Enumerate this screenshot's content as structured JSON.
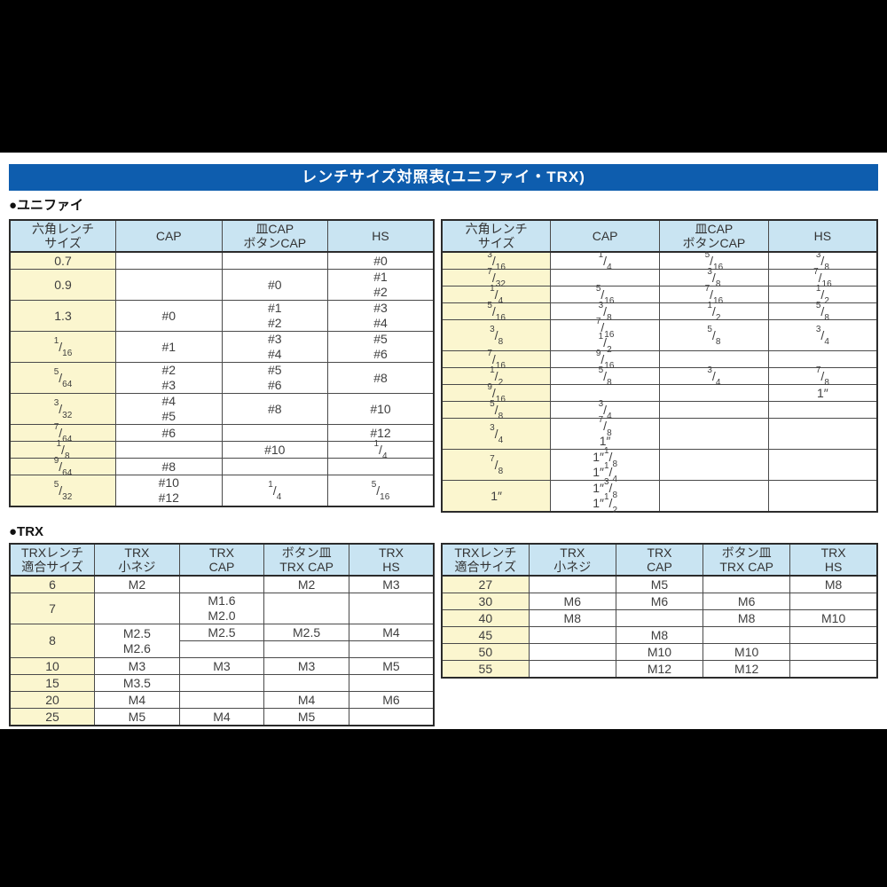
{
  "title_bar": {
    "text": "レンチサイズ対照表(ユニファイ・TRX)"
  },
  "sections": {
    "unify_label": "●ユニファイ",
    "trx_label": "●TRX"
  },
  "colors": {
    "title_bar_bg": "#0e5dae",
    "table_header_bg": "#c9e4f2",
    "size_column_bg": "#fbf6cf",
    "black_band": "#000000",
    "cell_text": "#3f3f3f"
  },
  "tables": {
    "unify_left": {
      "headers": [
        [
          "六角レンチ",
          "サイズ"
        ],
        [
          "CAP"
        ],
        [
          "皿CAP",
          "ボタンCAP"
        ],
        [
          "HS"
        ]
      ],
      "rows": [
        {
          "cells": [
            {
              "t": [
                "0.7"
              ]
            },
            {
              "t": []
            },
            {
              "t": []
            },
            {
              "t": [
                "#0"
              ]
            }
          ]
        },
        {
          "cells": [
            {
              "t": [
                "0.9"
              ]
            },
            {
              "t": []
            },
            {
              "t": [
                "#0"
              ]
            },
            {
              "t": [
                "#1",
                "#2"
              ]
            }
          ]
        },
        {
          "cells": [
            {
              "t": [
                "1.3"
              ]
            },
            {
              "t": [
                "#0"
              ]
            },
            {
              "t": [
                "#1",
                "#2"
              ]
            },
            {
              "t": [
                "#3",
                "#4"
              ]
            }
          ]
        },
        {
          "cells": [
            {
              "t": [
                "1/16"
              ]
            },
            {
              "t": [
                "#1"
              ]
            },
            {
              "t": [
                "#3",
                "#4"
              ]
            },
            {
              "t": [
                "#5",
                "#6"
              ]
            }
          ]
        },
        {
          "cells": [
            {
              "t": [
                "5/64"
              ]
            },
            {
              "t": [
                "#2",
                "#3"
              ]
            },
            {
              "t": [
                "#5",
                "#6"
              ]
            },
            {
              "t": [
                "#8"
              ]
            }
          ]
        },
        {
          "cells": [
            {
              "t": [
                "3/32"
              ]
            },
            {
              "t": [
                "#4",
                "#5"
              ]
            },
            {
              "t": [
                "#8"
              ]
            },
            {
              "t": [
                "#10"
              ]
            }
          ]
        },
        {
          "cells": [
            {
              "t": [
                "7/64"
              ]
            },
            {
              "t": [
                "#6"
              ]
            },
            {
              "t": []
            },
            {
              "t": [
                "#12"
              ]
            }
          ]
        },
        {
          "cells": [
            {
              "t": [
                "1/8"
              ]
            },
            {
              "t": []
            },
            {
              "t": [
                "#10"
              ]
            },
            {
              "t": [
                "1/4"
              ]
            }
          ]
        },
        {
          "cells": [
            {
              "t": [
                "9/64"
              ]
            },
            {
              "t": [
                "#8"
              ]
            },
            {
              "t": []
            },
            {
              "t": []
            }
          ]
        },
        {
          "cells": [
            {
              "t": [
                "5/32"
              ]
            },
            {
              "t": [
                "#10",
                "#12"
              ]
            },
            {
              "t": [
                "1/4"
              ]
            },
            {
              "t": [
                "5/16"
              ]
            }
          ]
        }
      ]
    },
    "unify_right": {
      "headers": [
        [
          "六角レンチ",
          "サイズ"
        ],
        [
          "CAP"
        ],
        [
          "皿CAP",
          "ボタンCAP"
        ],
        [
          "HS"
        ]
      ],
      "rows": [
        {
          "cells": [
            {
              "t": [
                "3/16"
              ]
            },
            {
              "t": [
                "1/4"
              ]
            },
            {
              "t": [
                "5/16"
              ]
            },
            {
              "t": [
                "3/8"
              ]
            }
          ]
        },
        {
          "cells": [
            {
              "t": [
                "7/32"
              ]
            },
            {
              "t": []
            },
            {
              "t": [
                "3/8"
              ]
            },
            {
              "t": [
                "7/16"
              ]
            }
          ]
        },
        {
          "cells": [
            {
              "t": [
                "1/4"
              ]
            },
            {
              "t": [
                "5/16"
              ]
            },
            {
              "t": [
                "7/16"
              ]
            },
            {
              "t": [
                "1/2"
              ]
            }
          ]
        },
        {
          "cells": [
            {
              "t": [
                "5/16"
              ]
            },
            {
              "t": [
                "3/8"
              ]
            },
            {
              "t": [
                "1/2"
              ]
            },
            {
              "t": [
                "5/8"
              ]
            }
          ]
        },
        {
          "cells": [
            {
              "t": [
                "3/8"
              ]
            },
            {
              "t": [
                "7/16",
                "1/2"
              ]
            },
            {
              "t": [
                "5/8"
              ]
            },
            {
              "t": [
                "3/4"
              ]
            }
          ]
        },
        {
          "cells": [
            {
              "t": [
                "7/16"
              ]
            },
            {
              "t": [
                "9/16"
              ]
            },
            {
              "t": []
            },
            {
              "t": []
            }
          ]
        },
        {
          "cells": [
            {
              "t": [
                "1/2"
              ]
            },
            {
              "t": [
                "5/8"
              ]
            },
            {
              "t": [
                "3/4"
              ]
            },
            {
              "t": [
                "7/8"
              ]
            }
          ]
        },
        {
          "cells": [
            {
              "t": [
                "9/16"
              ]
            },
            {
              "t": []
            },
            {
              "t": []
            },
            {
              "t": [
                "1″"
              ]
            }
          ]
        },
        {
          "cells": [
            {
              "t": [
                "5/8"
              ]
            },
            {
              "t": [
                "3/4"
              ]
            },
            {
              "t": []
            },
            {
              "t": []
            }
          ]
        },
        {
          "cells": [
            {
              "t": [
                "3/4"
              ]
            },
            {
              "t": [
                "7/8",
                "1″"
              ]
            },
            {
              "t": []
            },
            {
              "t": []
            }
          ]
        },
        {
          "cells": [
            {
              "t": [
                "7/8"
              ]
            },
            {
              "t": [
                "1″1/8",
                "1″1/4"
              ]
            },
            {
              "t": []
            },
            {
              "t": []
            }
          ]
        },
        {
          "cells": [
            {
              "t": [
                "1″"
              ]
            },
            {
              "t": [
                "1″3/8",
                "1″1/2"
              ]
            },
            {
              "t": []
            },
            {
              "t": []
            }
          ]
        }
      ]
    },
    "trx_left": {
      "headers": [
        [
          "TRXレンチ",
          "適合サイズ"
        ],
        [
          "TRX",
          "小ネジ"
        ],
        [
          "TRX",
          "CAP"
        ],
        [
          "ボタン皿",
          "TRX CAP"
        ],
        [
          "TRX",
          "HS"
        ]
      ],
      "rows": [
        {
          "cells": [
            {
              "t": [
                "6"
              ]
            },
            {
              "t": [
                "M2"
              ]
            },
            {
              "t": []
            },
            {
              "t": [
                "M2"
              ]
            },
            {
              "t": [
                "M3"
              ]
            }
          ]
        },
        {
          "cells": [
            {
              "t": [
                "7"
              ]
            },
            {
              "t": []
            },
            {
              "t": [
                "M1.6",
                "M2.0"
              ]
            },
            {
              "t": []
            },
            {
              "t": []
            }
          ]
        },
        {
          "cells": [
            {
              "t": [
                "8"
              ],
              "rowspan": 2
            },
            {
              "t": [
                "M2.5",
                "M2.6"
              ],
              "rowspan": 2
            },
            {
              "t": [
                "M2.5"
              ]
            },
            {
              "t": [
                "M2.5"
              ]
            },
            {
              "t": [
                "M4"
              ]
            }
          ]
        },
        {
          "cells": [
            {
              "t": []
            },
            {
              "t": []
            },
            {
              "t": []
            }
          ]
        },
        {
          "cells": [
            {
              "t": [
                "10"
              ]
            },
            {
              "t": [
                "M3"
              ]
            },
            {
              "t": [
                "M3"
              ]
            },
            {
              "t": [
                "M3"
              ]
            },
            {
              "t": [
                "M5"
              ]
            }
          ]
        },
        {
          "cells": [
            {
              "t": [
                "15"
              ]
            },
            {
              "t": [
                "M3.5"
              ]
            },
            {
              "t": []
            },
            {
              "t": []
            },
            {
              "t": []
            }
          ]
        },
        {
          "cells": [
            {
              "t": [
                "20"
              ]
            },
            {
              "t": [
                "M4"
              ]
            },
            {
              "t": []
            },
            {
              "t": [
                "M4"
              ]
            },
            {
              "t": [
                "M6"
              ]
            }
          ]
        },
        {
          "cells": [
            {
              "t": [
                "25"
              ]
            },
            {
              "t": [
                "M5"
              ]
            },
            {
              "t": [
                "M4"
              ]
            },
            {
              "t": [
                "M5"
              ]
            },
            {
              "t": []
            }
          ]
        }
      ]
    },
    "trx_right": {
      "headers": [
        [
          "TRXレンチ",
          "適合サイズ"
        ],
        [
          "TRX",
          "小ネジ"
        ],
        [
          "TRX",
          "CAP"
        ],
        [
          "ボタン皿",
          "TRX CAP"
        ],
        [
          "TRX",
          "HS"
        ]
      ],
      "rows": [
        {
          "cells": [
            {
              "t": [
                "27"
              ]
            },
            {
              "t": []
            },
            {
              "t": [
                "M5"
              ]
            },
            {
              "t": []
            },
            {
              "t": [
                "M8"
              ]
            }
          ]
        },
        {
          "cells": [
            {
              "t": [
                "30"
              ]
            },
            {
              "t": [
                "M6"
              ]
            },
            {
              "t": [
                "M6"
              ]
            },
            {
              "t": [
                "M6"
              ]
            },
            {
              "t": []
            }
          ]
        },
        {
          "cells": [
            {
              "t": [
                "40"
              ]
            },
            {
              "t": [
                "M8"
              ]
            },
            {
              "t": []
            },
            {
              "t": [
                "M8"
              ]
            },
            {
              "t": [
                "M10"
              ]
            }
          ]
        },
        {
          "cells": [
            {
              "t": [
                "45"
              ]
            },
            {
              "t": []
            },
            {
              "t": [
                "M8"
              ]
            },
            {
              "t": []
            },
            {
              "t": []
            }
          ]
        },
        {
          "cells": [
            {
              "t": [
                "50"
              ]
            },
            {
              "t": []
            },
            {
              "t": [
                "M10"
              ]
            },
            {
              "t": [
                "M10"
              ]
            },
            {
              "t": []
            }
          ]
        },
        {
          "cells": [
            {
              "t": [
                "55"
              ]
            },
            {
              "t": []
            },
            {
              "t": [
                "M12"
              ]
            },
            {
              "t": [
                "M12"
              ]
            },
            {
              "t": []
            }
          ]
        }
      ]
    }
  }
}
